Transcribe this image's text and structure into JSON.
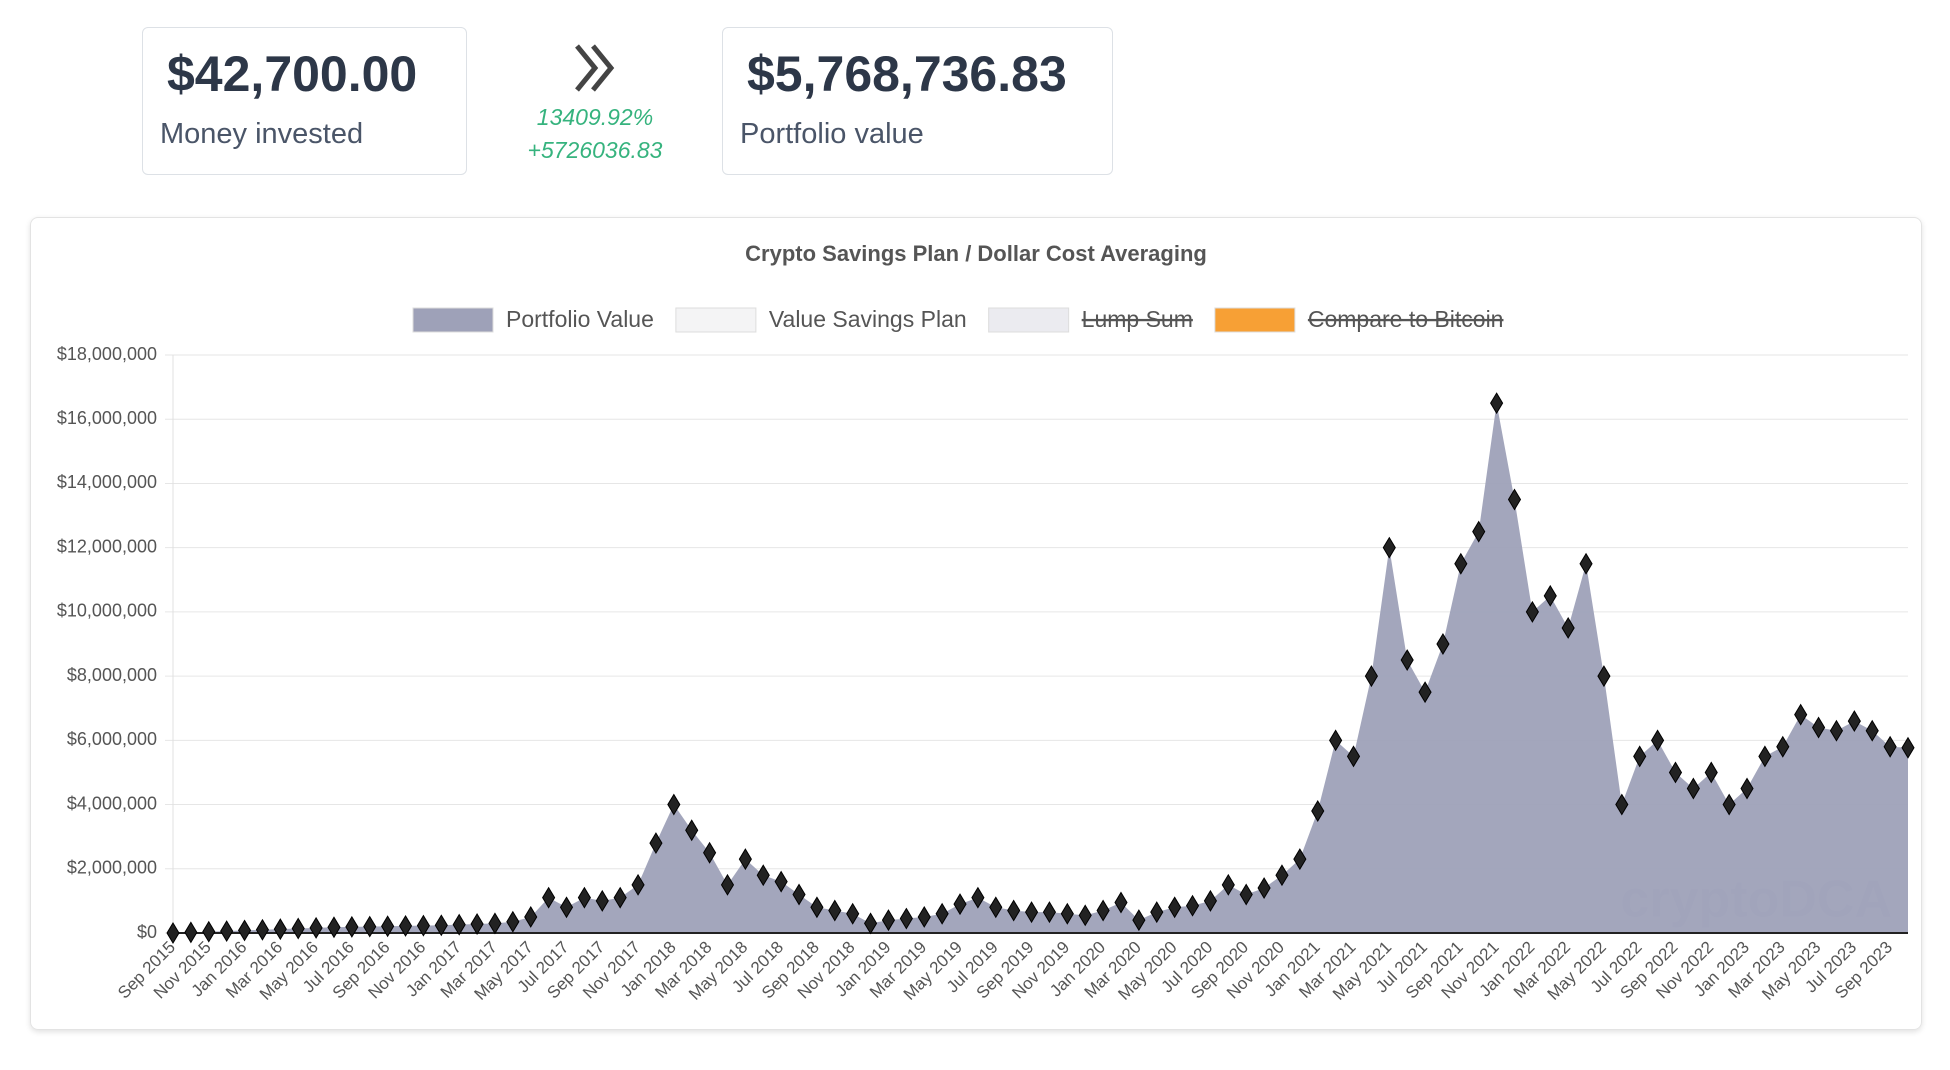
{
  "stats": {
    "invested": {
      "value": "$42,700.00",
      "label": "Money invested"
    },
    "change": {
      "percent": "13409.92%",
      "absolute": "+5726036.83"
    },
    "portfolio": {
      "value": "$5,768,736.83",
      "label": "Portfolio value"
    }
  },
  "chart_data": {
    "type": "area",
    "title": "Crypto Savings Plan / Dollar Cost Averaging",
    "watermark": "cryptoDCA",
    "legend": [
      {
        "name": "Portfolio Value",
        "color": "#9ea1b8",
        "hidden": false
      },
      {
        "name": "Value Savings Plan",
        "color": "#f4f4f5",
        "hidden": false
      },
      {
        "name": "Lump Sum",
        "color": "#ebebf0",
        "hidden": true
      },
      {
        "name": "Compare to Bitcoin",
        "color": "#f7a035",
        "hidden": true
      }
    ],
    "categories": [
      "Sep 2015",
      null,
      "Nov 2015",
      null,
      "Jan 2016",
      null,
      "Mar 2016",
      null,
      "May 2016",
      null,
      "Jul 2016",
      null,
      "Sep 2016",
      null,
      "Nov 2016",
      null,
      "Jan 2017",
      null,
      "Mar 2017",
      null,
      "May 2017",
      null,
      "Jul 2017",
      null,
      "Sep 2017",
      null,
      "Nov 2017",
      null,
      "Jan 2018",
      null,
      "Mar 2018",
      null,
      "May 2018",
      null,
      "Jul 2018",
      null,
      "Sep 2018",
      null,
      "Nov 2018",
      null,
      "Jan 2019",
      null,
      "Mar 2019",
      null,
      "May 2019",
      null,
      "Jul 2019",
      null,
      "Sep 2019",
      null,
      "Nov 2019",
      null,
      "Jan 2020",
      null,
      "Mar 2020",
      null,
      "May 2020",
      null,
      "Jul 2020",
      null,
      "Sep 2020",
      null,
      "Nov 2020",
      null,
      "Jan 2021",
      null,
      "Mar 2021",
      null,
      "May 2021",
      null,
      "Jul 2021",
      null,
      "Sep 2021",
      null,
      "Nov 2021",
      null,
      "Jan 2022",
      null,
      "Mar 2022",
      null,
      "May 2022",
      null,
      "Jul 2022",
      null,
      "Sep 2022",
      null,
      "Nov 2022",
      null,
      "Jan 2023",
      null,
      "Mar 2023",
      null,
      "May 2023",
      null,
      "Jul 2023",
      null,
      "Sep 2023",
      null
    ],
    "series": [
      {
        "name": "Portfolio Value",
        "color": "#9ea1b8",
        "values": [
          0,
          20000,
          40000,
          60000,
          80000,
          100000,
          120000,
          140000,
          160000,
          180000,
          190000,
          200000,
          210000,
          220000,
          230000,
          240000,
          260000,
          280000,
          300000,
          350000,
          500000,
          1100000,
          800000,
          1100000,
          1000000,
          1100000,
          1500000,
          2800000,
          4000000,
          3200000,
          2500000,
          1500000,
          2300000,
          1800000,
          1600000,
          1200000,
          800000,
          700000,
          600000,
          300000,
          400000,
          450000,
          500000,
          600000,
          900000,
          1100000,
          800000,
          700000,
          650000,
          650000,
          600000,
          550000,
          700000,
          950000,
          400000,
          650000,
          800000,
          850000,
          1000000,
          1500000,
          1200000,
          1400000,
          1800000,
          2300000,
          3800000,
          6000000,
          5500000,
          8000000,
          12000000,
          8500000,
          7500000,
          9000000,
          11500000,
          12500000,
          16500000,
          13500000,
          10000000,
          10500000,
          9500000,
          11500000,
          8000000,
          4000000,
          5500000,
          6000000,
          5000000,
          4500000,
          5000000,
          4000000,
          4500000,
          5500000,
          5800000,
          6800000,
          6400000,
          6300000,
          6600000,
          6300000,
          5800000,
          5768737
        ]
      }
    ],
    "ylim": [
      0,
      18000000
    ],
    "yticks": [
      {
        "value": 0,
        "label": "$0"
      },
      {
        "value": 2000000,
        "label": "$2,000,000"
      },
      {
        "value": 4000000,
        "label": "$4,000,000"
      },
      {
        "value": 6000000,
        "label": "$6,000,000"
      },
      {
        "value": 8000000,
        "label": "$8,000,000"
      },
      {
        "value": 10000000,
        "label": "$10,000,000"
      },
      {
        "value": 12000000,
        "label": "$12,000,000"
      },
      {
        "value": 14000000,
        "label": "$14,000,000"
      },
      {
        "value": 16000000,
        "label": "$16,000,000"
      },
      {
        "value": 18000000,
        "label": "$18,000,000"
      }
    ],
    "grid": true
  }
}
